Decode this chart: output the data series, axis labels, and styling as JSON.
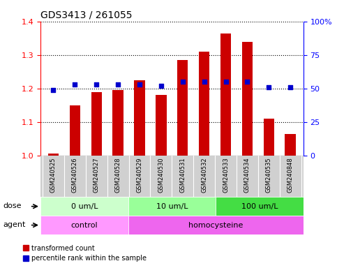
{
  "title": "GDS3413 / 261055",
  "samples": [
    "GSM240525",
    "GSM240526",
    "GSM240527",
    "GSM240528",
    "GSM240529",
    "GSM240530",
    "GSM240531",
    "GSM240532",
    "GSM240533",
    "GSM240534",
    "GSM240535",
    "GSM240848"
  ],
  "transformed_count": [
    1.005,
    1.15,
    1.19,
    1.195,
    1.225,
    1.18,
    1.285,
    1.31,
    1.365,
    1.34,
    1.11,
    1.065
  ],
  "percentile_rank": [
    49,
    53,
    53,
    53,
    53,
    52,
    55,
    55,
    55,
    55,
    51,
    51
  ],
  "ylim_left": [
    1.0,
    1.4
  ],
  "ylim_right": [
    0,
    100
  ],
  "bar_color": "#cc0000",
  "dot_color": "#0000cc",
  "bar_width": 0.5,
  "dose_groups": [
    {
      "label": "0 um/L",
      "start": 0,
      "end": 4,
      "color": "#ccffcc"
    },
    {
      "label": "10 um/L",
      "start": 4,
      "end": 8,
      "color": "#99ff99"
    },
    {
      "label": "100 um/L",
      "start": 8,
      "end": 12,
      "color": "#44dd44"
    }
  ],
  "agent_groups": [
    {
      "label": "control",
      "start": 0,
      "end": 4,
      "color": "#ff99ff"
    },
    {
      "label": "homocysteine",
      "start": 4,
      "end": 12,
      "color": "#ee66ee"
    }
  ],
  "dose_label": "dose",
  "agent_label": "agent",
  "legend_items": [
    {
      "label": "transformed count",
      "color": "#cc0000",
      "marker": "s"
    },
    {
      "label": "percentile rank within the sample",
      "color": "#0000cc",
      "marker": "s"
    }
  ],
  "grid_color": "#000000",
  "background_color": "#ffffff",
  "yticks_left": [
    1.0,
    1.1,
    1.2,
    1.3,
    1.4
  ],
  "yticks_right": [
    0,
    25,
    50,
    75,
    100
  ]
}
